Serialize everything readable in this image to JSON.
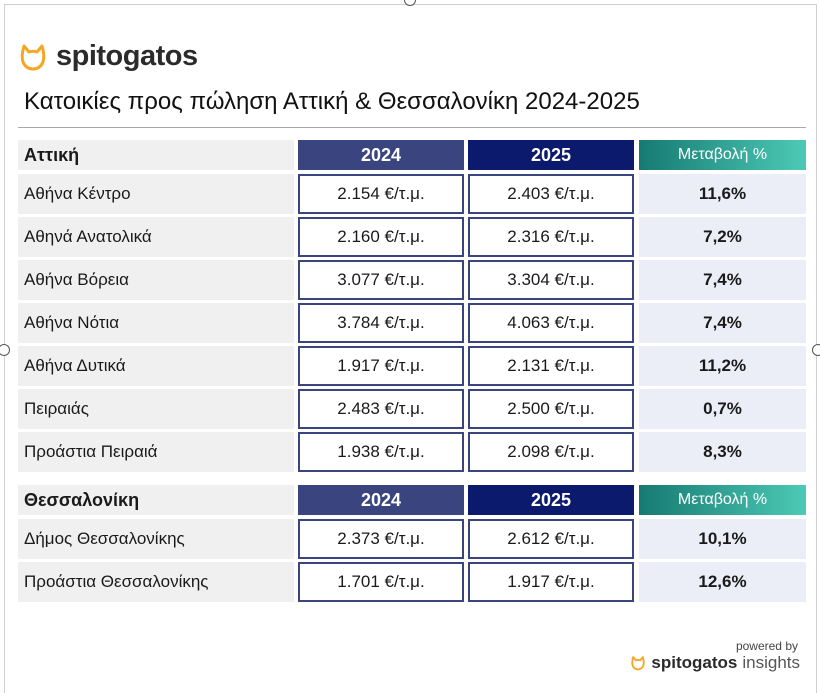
{
  "brand": {
    "name": "spitogatos",
    "accent": "#f5a623"
  },
  "title": "Κατοικίες προς πώληση Αττική & Θεσσαλονίκη 2024-2025",
  "sections": [
    {
      "region": "Αττική",
      "col1": "2024",
      "col2": "2025",
      "col3": "Μεταβολή %",
      "rows": [
        {
          "area": "Αθήνα Κέντρο",
          "v2024": "2.154 €/τ.μ.",
          "v2025": "2.403 €/τ.μ.",
          "change": "11,6%"
        },
        {
          "area": "Αθηνά Ανατολικά",
          "v2024": "2.160 €/τ.μ.",
          "v2025": "2.316 €/τ.μ.",
          "change": "7,2%"
        },
        {
          "area": "Αθήνα Βόρεια",
          "v2024": "3.077 €/τ.μ.",
          "v2025": "3.304 €/τ.μ.",
          "change": "7,4%"
        },
        {
          "area": "Αθήνα Νότια",
          "v2024": "3.784 €/τ.μ.",
          "v2025": "4.063 €/τ.μ.",
          "change": "7,4%"
        },
        {
          "area": "Αθήνα Δυτικά",
          "v2024": "1.917 €/τ.μ.",
          "v2025": "2.131 €/τ.μ.",
          "change": "11,2%"
        },
        {
          "area": "Πειραιάς",
          "v2024": "2.483 €/τ.μ.",
          "v2025": "2.500 €/τ.μ.",
          "change": "0,7%"
        },
        {
          "area": "Προάστια Πειραιά",
          "v2024": "1.938 €/τ.μ.",
          "v2025": "2.098 €/τ.μ.",
          "change": "8,3%"
        }
      ]
    },
    {
      "region": "Θεσσαλονίκη",
      "col1": "2024",
      "col2": "2025",
      "col3": "Μεταβολή %",
      "rows": [
        {
          "area": "Δήμος Θεσσαλονίκης",
          "v2024": "2.373 €/τ.μ.",
          "v2025": "2.612 €/τ.μ.",
          "change": "10,1%"
        },
        {
          "area": "Προάστια Θεσσαλονίκης",
          "v2024": "1.701 €/τ.μ.",
          "v2025": "1.917 €/τ.μ.",
          "change": "12,6%"
        }
      ]
    }
  ],
  "footer": {
    "powered_by": "powered by",
    "brand": "spitogatos",
    "product": "insights"
  }
}
